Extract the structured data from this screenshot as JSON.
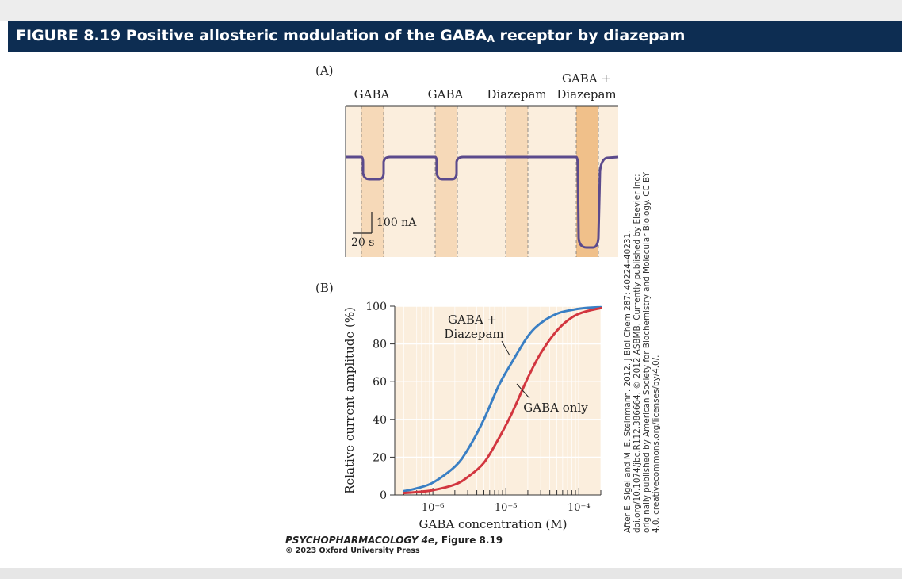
{
  "figure": {
    "title_pre": "FIGURE 8.19  Positive allosteric modulation of the GABA",
    "title_sub": "A",
    "title_post": " receptor by diazepam",
    "credit_book": "PSYCHOPHARMACOLOGY 4e",
    "credit_fig": ", Figure 8.19",
    "credit_copyright": "© 2023 Oxford University Press",
    "attribution_lines": [
      "After E. Sigel and M. E. Steinmann. 2012. J Biol Chem 287: 40224–40231.",
      "doi.org/10.1074/jbc.R112.386664. © 2012 ASBMB. Currently published by Elsevier Inc;",
      "originally published by American Society for Biochemistry and Molecular Biology. CC BY",
      "4.0, creativecommons.org/licenses/by/4.0/."
    ]
  },
  "panel_a": {
    "label": "(A)",
    "headers": [
      "GABA",
      "GABA",
      "Diazepam",
      "GABA +",
      "Diazepam"
    ],
    "scale_current": "100 nA",
    "scale_time": "20 s",
    "colors": {
      "background": "#fbeedd",
      "band": "#f6d9b8",
      "band_strong": "#f0c08a",
      "trace": "#5b4a8c"
    }
  },
  "chart_data": {
    "type": "line",
    "label": "(B)",
    "xlabel": "GABA concentration (M)",
    "ylabel": "Relative current amplitude (%)",
    "x_scale": "log",
    "xlim": [
      3e-07,
      0.0002
    ],
    "ylim": [
      0,
      100
    ],
    "yticks": [
      0,
      20,
      40,
      60,
      80,
      100
    ],
    "xticks": [
      "10⁻⁶",
      "10⁻⁵",
      "10⁻⁴"
    ],
    "grid": true,
    "series": [
      {
        "name": "GABA + Diazepam",
        "color": "#3a7fc4",
        "x": [
          4e-07,
          6e-07,
          1e-06,
          2e-06,
          3e-06,
          5e-06,
          8e-06,
          1.2e-05,
          2e-05,
          3e-05,
          5e-05,
          8e-05,
          0.00012,
          0.0002
        ],
        "y": [
          2,
          3.5,
          6.5,
          15,
          24,
          40,
          58,
          70,
          84,
          91,
          96,
          98,
          99,
          99.5
        ]
      },
      {
        "name": "GABA only",
        "color": "#d2363f",
        "x": [
          4e-07,
          6e-07,
          1e-06,
          2e-06,
          3e-06,
          5e-06,
          8e-06,
          1.2e-05,
          2e-05,
          3e-05,
          5e-05,
          8e-05,
          0.00012,
          0.0002
        ],
        "y": [
          1,
          1.5,
          2.5,
          5.5,
          9.5,
          17,
          30,
          43,
          62,
          75,
          87,
          94,
          97,
          99
        ]
      }
    ],
    "annotations": [
      {
        "line1": "GABA +",
        "line2": "Diazepam"
      },
      {
        "line1": "GABA only"
      }
    ]
  }
}
